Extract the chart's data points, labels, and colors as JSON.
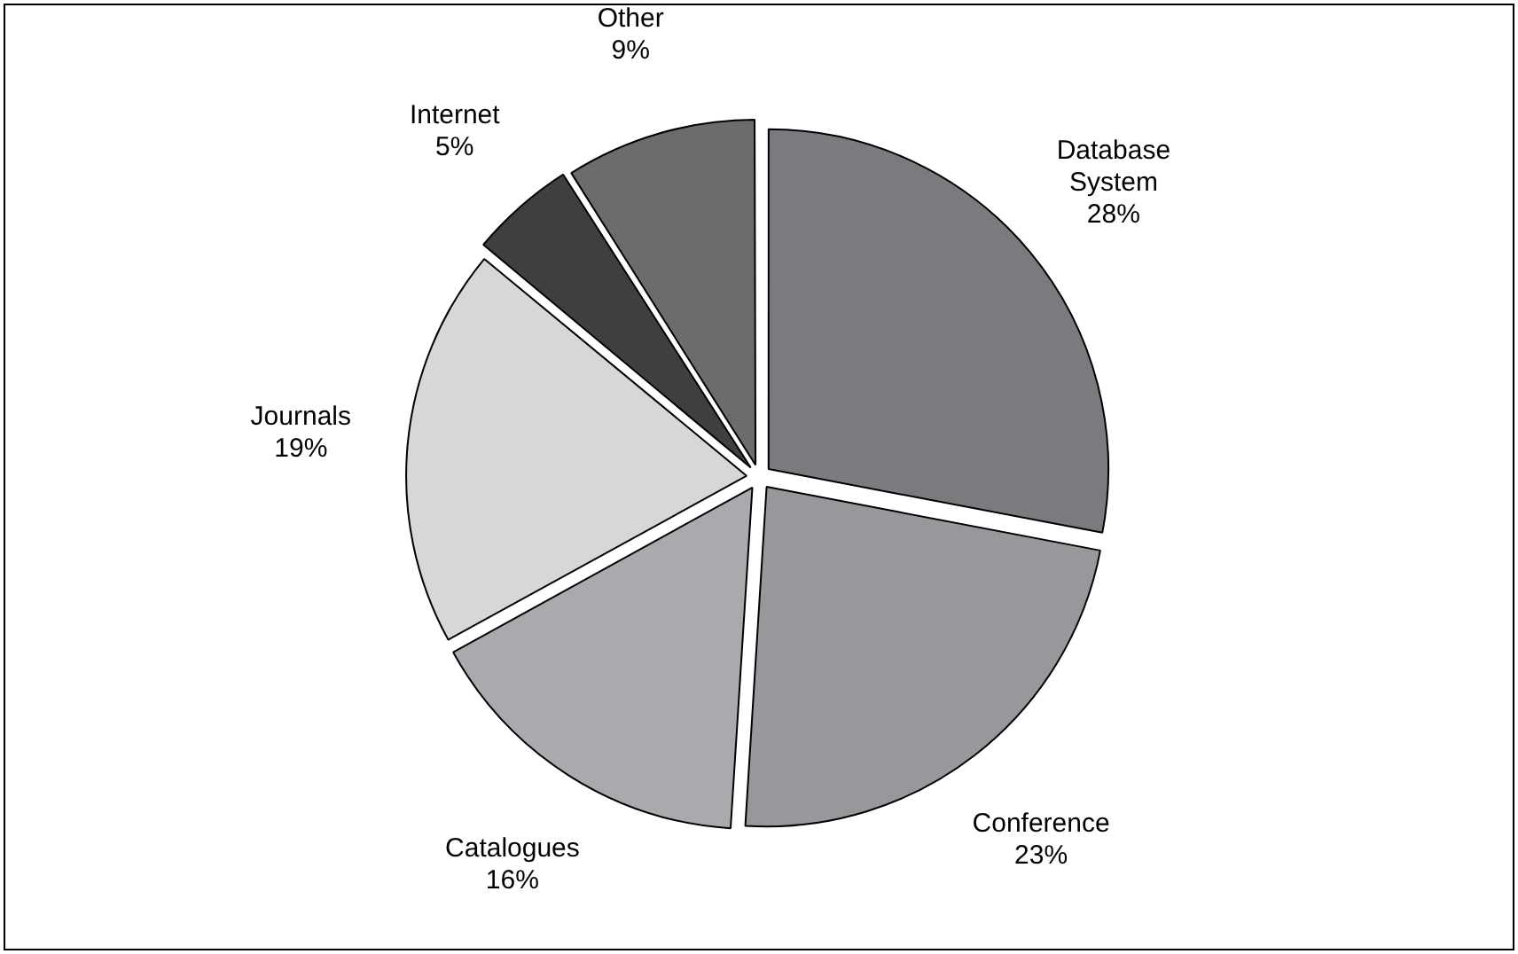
{
  "chart_data": {
    "type": "pie",
    "categories": [
      "Database System",
      "Conference",
      "Catalogues",
      "Journals",
      "Internet",
      "Other"
    ],
    "values": [
      28,
      23,
      16,
      19,
      5,
      9
    ],
    "value_labels": [
      "28%",
      "23%",
      "16%",
      "19%",
      "5%",
      "9%"
    ],
    "colors": [
      "#7a7b7f",
      "#96989b",
      "#a9aaae",
      "#d6d7d9",
      "#3f3f41",
      "#6b6c6e"
    ],
    "legend": false
  }
}
